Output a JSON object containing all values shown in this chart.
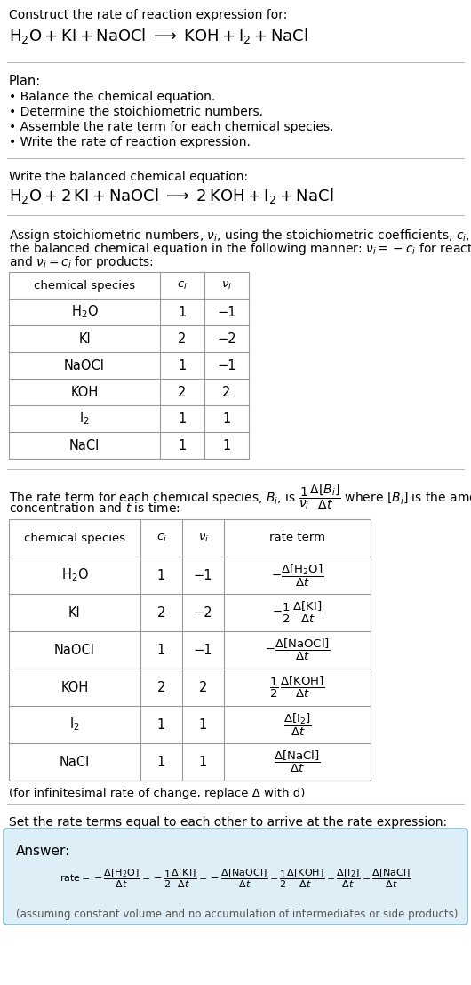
{
  "bg_color": "#ffffff",
  "title_line1": "Construct the rate of reaction expression for:",
  "plan_header": "Plan:",
  "plan_items": [
    "• Balance the chemical equation.",
    "• Determine the stoichiometric numbers.",
    "• Assemble the rate term for each chemical species.",
    "• Write the rate of reaction expression."
  ],
  "balanced_header": "Write the balanced chemical equation:",
  "table1_headers": [
    "chemical species",
    "c_i",
    "v_i"
  ],
  "table1_rows": [
    [
      "H₂O",
      "1",
      "−1"
    ],
    [
      "KI",
      "2",
      "−2"
    ],
    [
      "NaOCl",
      "1",
      "−1"
    ],
    [
      "KOH",
      "2",
      "2"
    ],
    [
      "I₂",
      "1",
      "1"
    ],
    [
      "NaCl",
      "1",
      "1"
    ]
  ],
  "table2_headers": [
    "chemical species",
    "c_i",
    "v_i",
    "rate term"
  ],
  "table2_rows": [
    [
      "H₂O",
      "1",
      "−1"
    ],
    [
      "KI",
      "2",
      "−2"
    ],
    [
      "NaOCl",
      "1",
      "−1"
    ],
    [
      "KOH",
      "2",
      "2"
    ],
    [
      "I₂",
      "1",
      "1"
    ],
    [
      "NaCl",
      "1",
      "1"
    ]
  ],
  "infinitesimal_note": "(for infinitesimal rate of change, replace Δ with d)",
  "set_equal_text": "Set the rate terms equal to each other to arrive at the rate expression:",
  "answer_bg": "#ddeef6",
  "answer_border": "#88bbcc",
  "answer_label": "Answer:",
  "assuming_note": "(assuming constant volume and no accumulation of intermediates or side products)",
  "table_border": "#999999",
  "section_line": "#bbbbbb",
  "text_gray": "#555555"
}
